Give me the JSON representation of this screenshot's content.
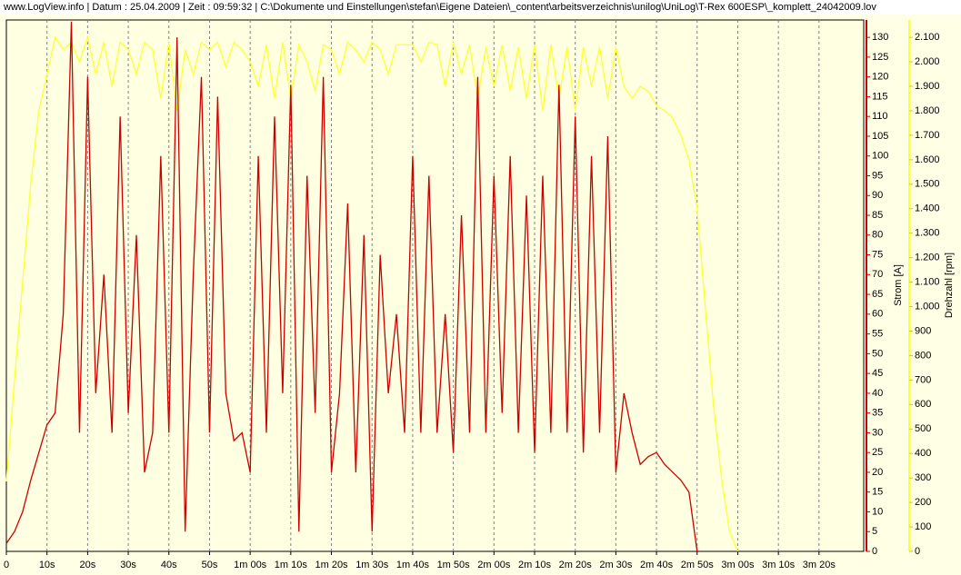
{
  "chart_data": {
    "type": "line",
    "title": "www.LogView.info   |   Datum : 25.04.2009   |   Zeit : 09:59:32   |   C:\\Dokumente und Einstellungen\\stefan\\Eigene Dateien\\_content\\arbeitsverzeichnis\\unilog\\UniLog\\T-Rex 600ESP\\_komplett_24042009.lov",
    "y_label": "Strom [A]",
    "y2_label": "Drehzahl [rpm]",
    "x": [
      0,
      2,
      4,
      6,
      8,
      10,
      12,
      14,
      16,
      18,
      20,
      22,
      24,
      26,
      28,
      30,
      32,
      34,
      36,
      38,
      40,
      42,
      44,
      46,
      48,
      50,
      52,
      54,
      56,
      58,
      60,
      62,
      64,
      66,
      68,
      70,
      72,
      74,
      76,
      78,
      80,
      82,
      84,
      86,
      88,
      90,
      92,
      94,
      96,
      98,
      100,
      102,
      104,
      106,
      108,
      110,
      112,
      114,
      116,
      118,
      120,
      122,
      124,
      126,
      128,
      130,
      132,
      134,
      136,
      138,
      140,
      142,
      144,
      146,
      148,
      150,
      152,
      154,
      156,
      158,
      160,
      162,
      164,
      166,
      168,
      170,
      172,
      174,
      176,
      178,
      180
    ],
    "xlim": [
      0,
      211
    ],
    "xticks": [
      0,
      {
        "value": 10,
        "label": "10s"
      },
      {
        "value": 20,
        "label": "20s"
      },
      {
        "value": 30,
        "label": "30s"
      },
      {
        "value": 40,
        "label": "40s"
      },
      {
        "value": 50,
        "label": "50s"
      },
      {
        "value": 60,
        "label": "1m 00s"
      },
      {
        "value": 70,
        "label": "1m 10s"
      },
      {
        "value": 80,
        "label": "1m 20s"
      },
      {
        "value": 90,
        "label": "1m 30s"
      },
      {
        "value": 100,
        "label": "1m 40s"
      },
      {
        "value": 110,
        "label": "1m 50s"
      },
      {
        "value": 120,
        "label": "2m 00s"
      },
      {
        "value": 130,
        "label": "2m 10s"
      },
      {
        "value": 140,
        "label": "2m 20s"
      },
      {
        "value": 150,
        "label": "2m 30s"
      },
      {
        "value": 160,
        "label": "2m 40s"
      },
      {
        "value": 170,
        "label": "2m 50s"
      },
      {
        "value": 180,
        "label": "3m 00s"
      },
      {
        "value": 190,
        "label": "3m 10s"
      },
      {
        "value": 200,
        "label": "3m 20s"
      }
    ],
    "ylim": [
      0,
      134.4
    ],
    "yticks": [
      0,
      5,
      10,
      15,
      20,
      25,
      30,
      35,
      40,
      45,
      50,
      55,
      60,
      65,
      70,
      75,
      80,
      85,
      90,
      95,
      100,
      105,
      110,
      115,
      120,
      125,
      130
    ],
    "y2lim": [
      0,
      2171
    ],
    "y2ticks": [
      0,
      100,
      200,
      300,
      400,
      500,
      600,
      700,
      800,
      900,
      {
        "value": 1000,
        "label": "1.000"
      },
      {
        "value": 1100,
        "label": "1.100"
      },
      {
        "value": 1200,
        "label": "1.200"
      },
      {
        "value": 1300,
        "label": "1.300"
      },
      {
        "value": 1400,
        "label": "1.400"
      },
      {
        "value": 1500,
        "label": "1.500"
      },
      {
        "value": 1600,
        "label": "1.600"
      },
      {
        "value": 1700,
        "label": "1.700"
      },
      {
        "value": 1800,
        "label": "1.800"
      },
      {
        "value": 1900,
        "label": "1.900"
      },
      {
        "value": 2000,
        "label": "2.000"
      },
      {
        "value": 2100,
        "label": "2.100"
      }
    ],
    "grid": true,
    "series": [
      {
        "name": "Strom",
        "color": "#cc0000",
        "axis": "y",
        "values": [
          2,
          5,
          10,
          18,
          25,
          32,
          35,
          60,
          134,
          30,
          120,
          40,
          70,
          30,
          110,
          35,
          80,
          20,
          30,
          100,
          30,
          130,
          5,
          70,
          120,
          30,
          115,
          40,
          28,
          30,
          20,
          100,
          30,
          110,
          40,
          118,
          5,
          95,
          35,
          120,
          20,
          40,
          88,
          20,
          80,
          5,
          75,
          40,
          60,
          30,
          100,
          30,
          95,
          30,
          60,
          25,
          85,
          30,
          120,
          30,
          95,
          35,
          100,
          30,
          90,
          25,
          95,
          30,
          118,
          30,
          110,
          25,
          100,
          30,
          105,
          20,
          40,
          30,
          22,
          24,
          25,
          22,
          20,
          18,
          15,
          0,
          null,
          null,
          null,
          null,
          null
        ]
      },
      {
        "name": "Drehzahl",
        "color": "#ffff33",
        "axis": "y2",
        "values": [
          286,
          700,
          1100,
          1500,
          1800,
          1950,
          2100,
          2050,
          2080,
          2000,
          2100,
          1950,
          2080,
          1900,
          2080,
          2050,
          1950,
          2080,
          2050,
          1850,
          2080,
          1800,
          2050,
          1950,
          2080,
          2050,
          2080,
          1980,
          2080,
          2050,
          2000,
          1900,
          2070,
          1850,
          2080,
          1850,
          2070,
          2000,
          1880,
          2070,
          2050,
          1950,
          2080,
          2050,
          2000,
          2080,
          2050,
          1950,
          2070,
          2070,
          2070,
          2000,
          2080,
          2070,
          1900,
          2080,
          1950,
          2070,
          1850,
          2060,
          1900,
          2070,
          1880,
          2060,
          1850,
          2070,
          1800,
          2070,
          1850,
          2060,
          1800,
          2060,
          1900,
          2060,
          1850,
          2060,
          1900,
          1850,
          1900,
          1880,
          1820,
          1800,
          1770,
          1700,
          1600,
          1400,
          1000,
          600,
          300,
          80,
          0
        ]
      }
    ]
  }
}
